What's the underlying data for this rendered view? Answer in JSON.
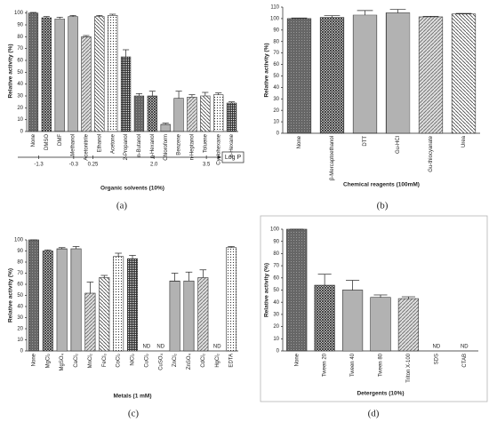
{
  "chart_data": [
    {
      "type": "bar",
      "caption": "(a)",
      "x_label": "Organic solvents (10%)",
      "y_label": "Relative activity (%)",
      "categories": [
        "None",
        "DMSO",
        "DMF",
        "Methanol",
        "Acetonitrile",
        "Ethanol",
        "Acetone",
        "2-Propanol",
        "n-Butanol",
        "n-Hexanol",
        "Chloroform",
        "Benzene",
        "n-Heptanol",
        "Toluene",
        "Cyclohexane",
        "n-Hexane"
      ],
      "values": [
        100,
        96,
        95,
        97,
        80,
        97,
        98,
        63,
        30,
        30,
        6,
        28,
        29,
        30,
        31,
        24
      ],
      "errors": [
        0.5,
        1,
        1.5,
        1,
        1,
        1,
        1,
        6,
        2,
        4,
        1,
        6,
        2,
        3,
        1.5,
        1
      ],
      "color": "#333333",
      "ylim": [
        0,
        102
      ],
      "yticks": [
        0,
        10,
        20,
        30,
        40,
        50,
        60,
        70,
        80,
        90,
        100
      ],
      "logp": {
        "label": "Log P",
        "xlim": [
          -1.9,
          3.7
        ],
        "ticks": [
          -1.3,
          -0.3,
          0.25,
          {
            "value": 2,
            "label": "2.0"
          },
          3.5
        ]
      }
    },
    {
      "type": "bar",
      "caption": "(b)",
      "x_label": "Chemical reagents (100mM)",
      "y_label": "Relative activity (%)",
      "categories": [
        "None",
        "β-Mercaptoethanol",
        "DTT",
        "Gu-HCl",
        "Gu-thiocyanate",
        "Urea"
      ],
      "values": [
        100,
        101,
        103,
        105,
        101.5,
        104
      ],
      "errors": [
        0.5,
        1.5,
        4,
        3,
        0.5,
        0.5
      ],
      "color": "#333333",
      "ylim": [
        0,
        110
      ],
      "yticks": [
        0,
        10,
        20,
        30,
        40,
        50,
        60,
        70,
        80,
        90,
        100,
        110
      ]
    },
    {
      "type": "bar",
      "caption": "(c)",
      "x_label": "Metals (1 mM)",
      "y_label": "Relative activity (%)",
      "categories": [
        "None",
        "MgCl₂",
        "MgSO₄",
        "CaCl₂",
        "MnCl₂",
        "FeCl₃",
        "CoCl₂",
        "NiCl₂",
        "CuCl₂",
        "CuSO₄",
        "ZnCl₂",
        "ZnSO₄",
        "CdCl₂",
        "HgCl₂",
        "EDTA"
      ],
      "values": [
        100,
        90,
        92,
        92,
        52,
        66,
        85,
        83,
        null,
        null,
        63,
        63,
        66,
        null,
        93
      ],
      "errors": [
        0,
        1,
        1,
        2,
        10,
        2,
        3,
        3,
        null,
        null,
        7,
        8,
        7,
        null,
        1
      ],
      "value_labels": [
        null,
        null,
        null,
        null,
        null,
        null,
        null,
        null,
        "ND",
        "ND",
        null,
        null,
        null,
        "ND",
        null
      ],
      "color": "#333333",
      "ylim": [
        0,
        100
      ],
      "yticks": [
        0,
        10,
        20,
        30,
        40,
        50,
        60,
        70,
        80,
        90,
        100
      ]
    },
    {
      "type": "bar",
      "caption": "(d)",
      "x_label": "Detergents (10%)",
      "y_label": "Relative activity (%)",
      "categories": [
        "None",
        "Tween 20",
        "Tween 40",
        "Tween 80",
        "Triton X-100",
        "SDS",
        "CTAB"
      ],
      "values": [
        100,
        54,
        50,
        44,
        43,
        null,
        null
      ],
      "errors": [
        0,
        9,
        8,
        2,
        1.5,
        null,
        null
      ],
      "value_labels": [
        null,
        null,
        null,
        null,
        null,
        "ND",
        "ND"
      ],
      "color": "#333333",
      "ylim": [
        0,
        100
      ],
      "yticks": [
        0,
        10,
        20,
        30,
        40,
        50,
        60,
        70,
        80,
        90,
        100
      ]
    }
  ]
}
